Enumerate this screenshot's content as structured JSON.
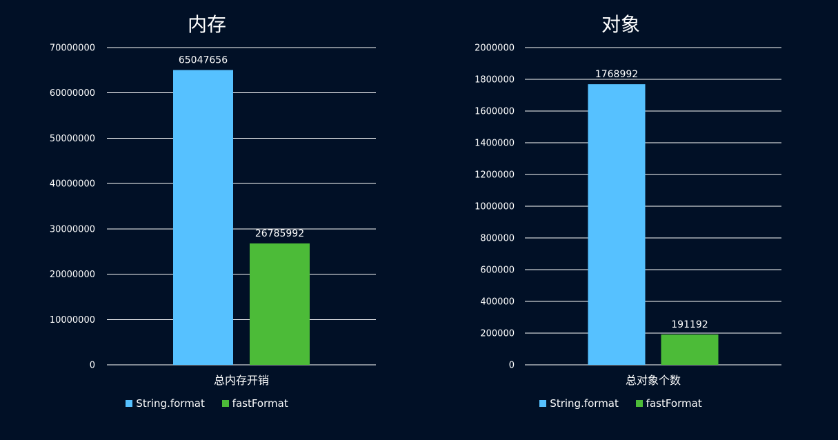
{
  "colors": {
    "background": "#011026",
    "string_format": "#56c1ff",
    "fast_format": "#4cbb38",
    "grid": "#ffffff"
  },
  "chart_data": [
    {
      "type": "bar",
      "title": "内存",
      "categories": [
        "总内存开销"
      ],
      "series": [
        {
          "name": "String.format",
          "values": [
            65047656
          ]
        },
        {
          "name": "fastFormat",
          "values": [
            26785992
          ]
        }
      ],
      "data_labels": [
        "65047656",
        "26785992"
      ],
      "ylim": [
        0,
        70000000
      ],
      "yticks": [
        0,
        10000000,
        20000000,
        30000000,
        40000000,
        50000000,
        60000000,
        70000000
      ],
      "ytick_labels": [
        "0",
        "10000000",
        "20000000",
        "30000000",
        "40000000",
        "50000000",
        "60000000",
        "70000000"
      ],
      "grid": true,
      "legend": "bottom"
    },
    {
      "type": "bar",
      "title": "对象",
      "categories": [
        "总对象个数"
      ],
      "series": [
        {
          "name": "String.format",
          "values": [
            1768992
          ]
        },
        {
          "name": "fastFormat",
          "values": [
            191192
          ]
        }
      ],
      "data_labels": [
        "1768992",
        "191192"
      ],
      "ylim": [
        0,
        2000000
      ],
      "yticks": [
        0,
        200000,
        400000,
        600000,
        800000,
        1000000,
        1200000,
        1400000,
        1600000,
        1800000,
        2000000
      ],
      "ytick_labels": [
        "0",
        "200000",
        "400000",
        "600000",
        "800000",
        "1000000",
        "1200000",
        "1400000",
        "1600000",
        "1800000",
        "2000000"
      ],
      "grid": true,
      "legend": "bottom"
    }
  ]
}
